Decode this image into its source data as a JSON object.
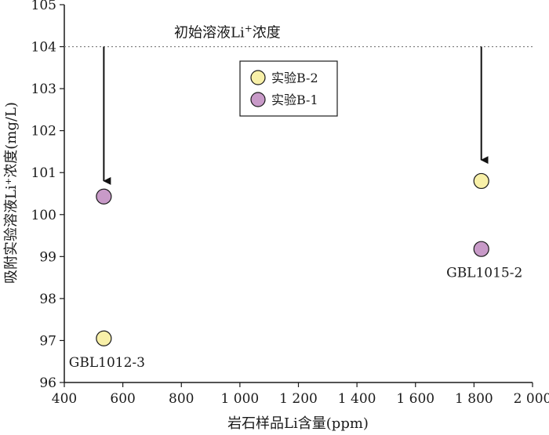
{
  "chart_data": {
    "type": "scatter",
    "xlabel": "岩石样品Li含量(ppm)",
    "ylabel": "吸附实验溶液Li⁺浓度(mg/L)",
    "xlim": [
      400,
      2000
    ],
    "ylim": [
      96,
      105
    ],
    "x_ticks": [
      400,
      600,
      800,
      1000,
      1200,
      1400,
      1600,
      1800,
      2000
    ],
    "x_tick_labels": [
      "400",
      "600",
      "800",
      "1 000",
      "1 200",
      "1 400",
      "1 600",
      "1 800",
      "2 000"
    ],
    "y_ticks": [
      96,
      97,
      98,
      99,
      100,
      101,
      102,
      103,
      104,
      105
    ],
    "y_tick_labels": [
      "96",
      "97",
      "98",
      "99",
      "100",
      "101",
      "102",
      "103",
      "104",
      "105"
    ],
    "grid": false,
    "legend_position": "top-center",
    "reference_line": {
      "y": 104,
      "label_main": "初始溶液Li",
      "label_sup": "+",
      "label_tail": "浓度",
      "style": "dotted"
    },
    "series": [
      {
        "name": "实验B-2",
        "color": "#f8f0a8",
        "points": [
          {
            "x": 535,
            "y": 97.05
          },
          {
            "x": 1825,
            "y": 100.8
          }
        ]
      },
      {
        "name": "实验B-1",
        "color": "#c89ac8",
        "points": [
          {
            "x": 535,
            "y": 100.43
          },
          {
            "x": 1825,
            "y": 99.18
          }
        ]
      }
    ],
    "annotations": [
      {
        "text": "GBL1012-3",
        "x": 535,
        "y": 97.05,
        "placement": "below"
      },
      {
        "text": "GBL1015-2",
        "x": 1825,
        "y": 99.18,
        "placement": "below"
      }
    ],
    "arrows": [
      {
        "x": 535,
        "from_y": 104,
        "to_y": 100.8
      },
      {
        "x": 1825,
        "from_y": 104,
        "to_y": 101.3
      }
    ]
  }
}
